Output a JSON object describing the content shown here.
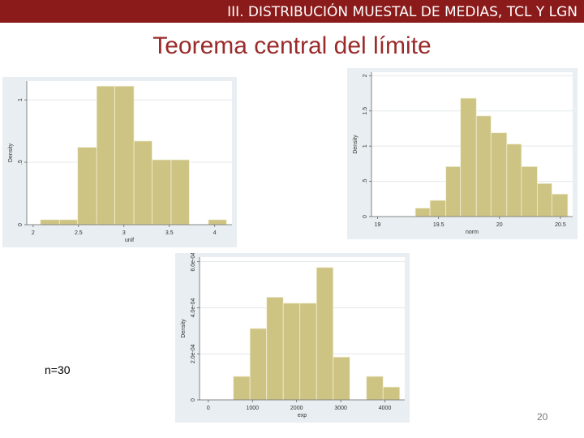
{
  "header": "III. DISTRIBUCIÓN MUESTAL DE MEDIAS, TCL Y LGN",
  "title": "Teorema central del límite",
  "note": "n=30",
  "page_number": "20",
  "chart_data": [
    {
      "type": "histogram",
      "xlabel": "unif",
      "ylabel": "Density",
      "color": "#cdc383",
      "grid": true,
      "bins": [
        2.08,
        2.29,
        2.49,
        2.7,
        2.9,
        3.11,
        3.31,
        3.52,
        3.72,
        3.93,
        4.13
      ],
      "values": [
        0.04,
        0.04,
        0.62,
        1.11,
        1.11,
        0.67,
        0.52,
        0.52,
        0,
        0.04
      ],
      "xlim": [
        1.93,
        4.19
      ],
      "xticks": [
        2,
        2.5,
        3,
        3.5,
        4
      ],
      "ylim": [
        0,
        1.15
      ],
      "yticks": [
        0,
        {
          "value": 0.5,
          "label": ".5"
        },
        1
      ]
    },
    {
      "type": "histogram",
      "xlabel": "norm",
      "ylabel": "Density",
      "color": "#cdc383",
      "grid": true,
      "bins": [
        19.31,
        19.43,
        19.56,
        19.68,
        19.81,
        19.93,
        20.06,
        20.18,
        20.31,
        20.43,
        20.56
      ],
      "values": [
        0.12,
        0.23,
        0.71,
        1.68,
        1.43,
        1.19,
        1.03,
        0.71,
        0.47,
        0.32
      ],
      "xlim": [
        18.95,
        20.6
      ],
      "xticks": [
        19,
        19.5,
        20,
        20.5
      ],
      "ylim": [
        0,
        2.05
      ],
      "yticks": [
        0,
        {
          "value": 0.5,
          "label": ".5"
        },
        1,
        1.5,
        2
      ]
    },
    {
      "type": "histogram",
      "xlabel": "exp",
      "ylabel": "Density",
      "color": "#cdc383",
      "grid": true,
      "bins": [
        566,
        943,
        1320,
        1697,
        2074,
        2451,
        2828,
        3205,
        3582,
        3959,
        4336
      ],
      "values": [
        0.000102,
        0.00031,
        0.000446,
        0.00042,
        0.00042,
        0.000575,
        0.000186,
        0,
        0.000102,
        5.6e-05
      ],
      "xlim": [
        -200,
        4450
      ],
      "xticks": [
        0,
        1000,
        2000,
        3000,
        4000
      ],
      "ylim": [
        0,
        0.00062
      ],
      "yticks": [
        0,
        {
          "value": 0.0002,
          "label": "2.0e-04"
        },
        {
          "value": 0.0004,
          "label": "4.0e-04"
        },
        {
          "value": 0.0006,
          "label": "6.0e-04"
        }
      ]
    }
  ]
}
